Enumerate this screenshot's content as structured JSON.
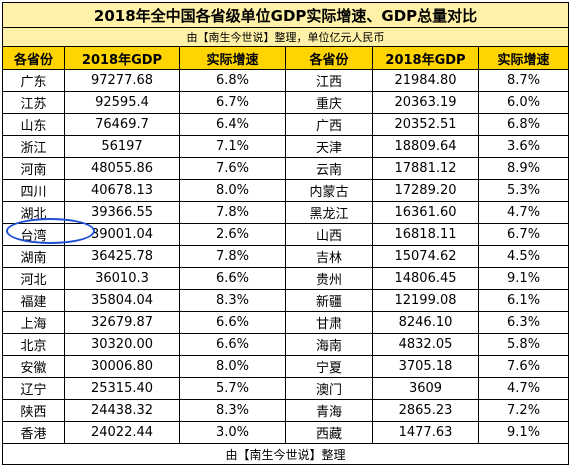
{
  "title": "2018年全中国各省级单位GDP实际增速、GDP总量对比",
  "subtitle": "由【南生今世说】整理，单位亿元人民币",
  "headers": [
    "各省份",
    "2018年GDP",
    "实际增速",
    "各省份",
    "2018年GDP",
    "实际增速"
  ],
  "rows": [
    {
      "p1": "广东",
      "g1": "97277.68",
      "r1": "6.8%",
      "p2": "江西",
      "g2": "21984.80",
      "r2": "8.7%"
    },
    {
      "p1": "江苏",
      "g1": "92595.4",
      "r1": "6.7%",
      "p2": "重庆",
      "g2": "20363.19",
      "r2": "6.0%"
    },
    {
      "p1": "山东",
      "g1": "76469.7",
      "r1": "6.4%",
      "p2": "广西",
      "g2": "20352.51",
      "r2": "6.8%"
    },
    {
      "p1": "浙江",
      "g1": "56197",
      "r1": "7.1%",
      "p2": "天津",
      "g2": "18809.64",
      "r2": "3.6%"
    },
    {
      "p1": "河南",
      "g1": "48055.86",
      "r1": "7.6%",
      "p2": "云南",
      "g2": "17881.12",
      "r2": "8.9%"
    },
    {
      "p1": "四川",
      "g1": "40678.13",
      "r1": "8.0%",
      "p2": "内蒙古",
      "g2": "17289.20",
      "r2": "5.3%"
    },
    {
      "p1": "湖北",
      "g1": "39366.55",
      "r1": "7.8%",
      "p2": "黑龙江",
      "g2": "16361.60",
      "r2": "4.7%"
    },
    {
      "p1": "台湾",
      "g1": "39001.04",
      "r1": "2.6%",
      "p2": "山西",
      "g2": "16818.11",
      "r2": "6.7%"
    },
    {
      "p1": "湖南",
      "g1": "36425.78",
      "r1": "7.8%",
      "p2": "吉林",
      "g2": "15074.62",
      "r2": "4.5%"
    },
    {
      "p1": "河北",
      "g1": "36010.3",
      "r1": "6.6%",
      "p2": "贵州",
      "g2": "14806.45",
      "r2": "9.1%"
    },
    {
      "p1": "福建",
      "g1": "35804.04",
      "r1": "8.3%",
      "p2": "新疆",
      "g2": "12199.08",
      "r2": "6.1%"
    },
    {
      "p1": "上海",
      "g1": "32679.87",
      "r1": "6.6%",
      "p2": "甘肃",
      "g2": "8246.10",
      "r2": "6.3%"
    },
    {
      "p1": "北京",
      "g1": "30320.00",
      "r1": "6.6%",
      "p2": "海南",
      "g2": "4832.05",
      "r2": "5.8%"
    },
    {
      "p1": "安徽",
      "g1": "30006.80",
      "r1": "8.0%",
      "p2": "宁夏",
      "g2": "3705.18",
      "r2": "7.6%"
    },
    {
      "p1": "辽宁",
      "g1": "25315.40",
      "r1": "5.7%",
      "p2": "澳门",
      "g2": "3609",
      "r2": "4.7%"
    },
    {
      "p1": "陕西",
      "g1": "24438.32",
      "r1": "8.3%",
      "p2": "青海",
      "g2": "2865.23",
      "r2": "7.2%"
    },
    {
      "p1": "香港",
      "g1": "24022.44",
      "r1": "3.0%",
      "p2": "西藏",
      "g2": "1477.63",
      "r2": "9.1%"
    }
  ],
  "footer": "由【南生今世说】整理",
  "colors": {
    "header_bg": "#ffd400",
    "title_bg": "#fff2a8",
    "highlight_oval": "#1f4fd1"
  }
}
